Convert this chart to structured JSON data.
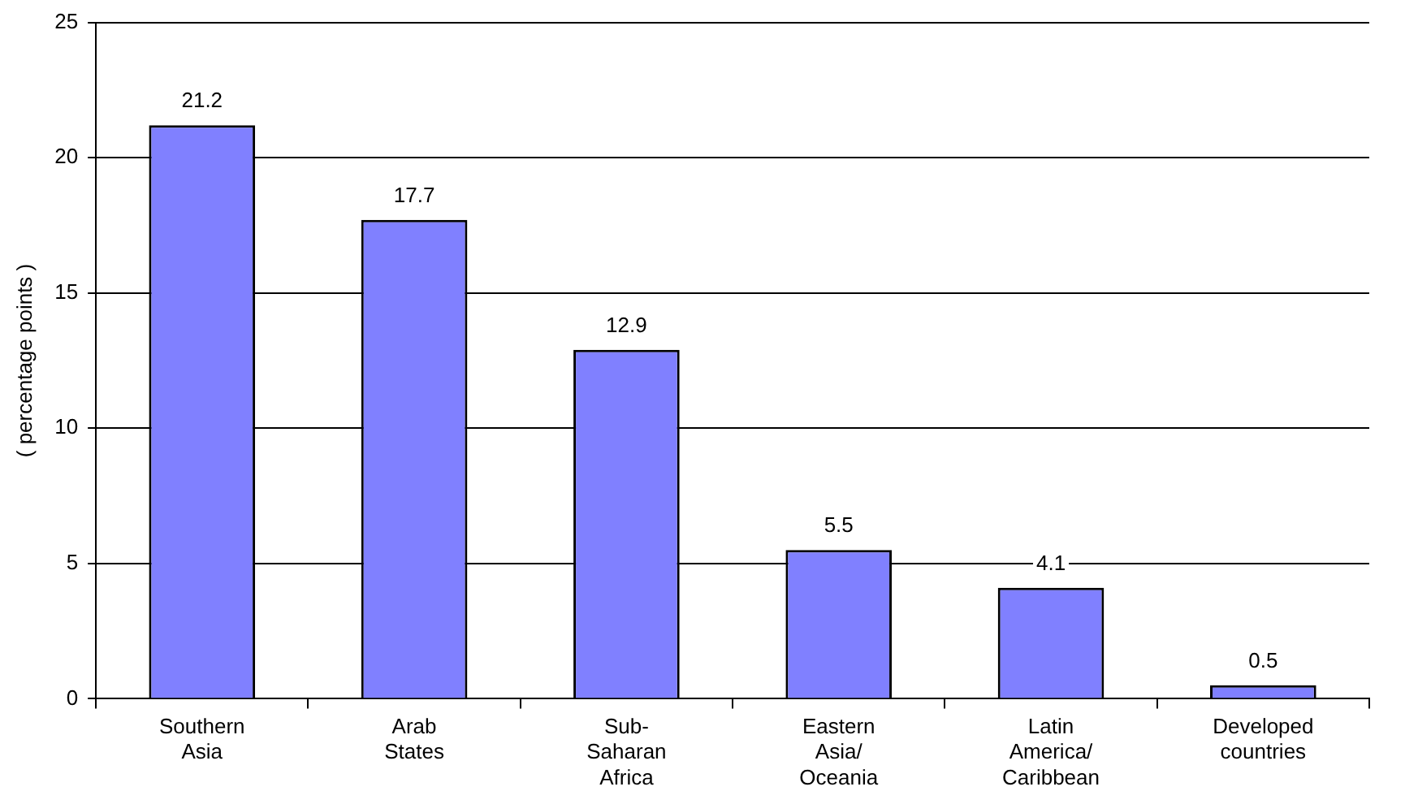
{
  "chart_data": {
    "type": "bar",
    "ylabel": "( percentage points )",
    "categories": [
      "Southern Asia",
      "Arab States",
      "Sub-Saharan Africa",
      "Eastern Asia/Oceania",
      "Latin America/Caribbean",
      "Developed countries"
    ],
    "values": [
      21.2,
      17.7,
      12.9,
      5.5,
      4.1,
      0.5
    ],
    "color": "#8080ff",
    "ylim": [
      0,
      25
    ],
    "yticks": [
      0,
      5,
      10,
      15,
      20,
      25
    ],
    "grid": "y",
    "data_labels": true
  }
}
